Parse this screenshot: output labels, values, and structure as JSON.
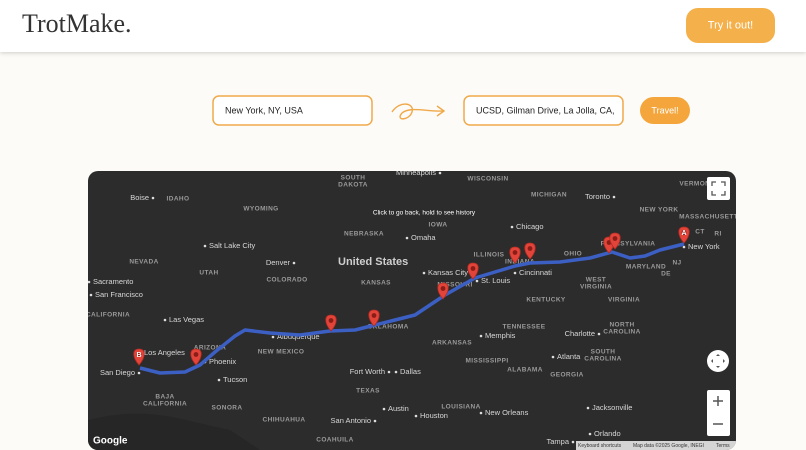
{
  "header": {
    "logo": "TrotMake.",
    "cta": "Try it out!"
  },
  "form": {
    "origin": "New York, NY, USA",
    "destination": "UCSD, Gilman Drive, La Jolla, CA,",
    "submit": "Travel!"
  },
  "map": {
    "hint": "Click to go back, hold to see history",
    "brand": "Google",
    "footer": [
      "Keyboard shortcuts",
      "Map data ©2025 Google, INEGI",
      "Terms"
    ],
    "markers": [
      "A",
      "B"
    ],
    "country": "United States",
    "regions": [
      "SOUTH",
      "DAKOTA",
      "WISCONSIN",
      "MICHIGAN",
      "IDAHO",
      "WYOMING",
      "NEBRASKA",
      "IOWA",
      "NEVADA",
      "UTAH",
      "COLORADO",
      "KANSAS",
      "ILLINOIS",
      "OHIO",
      "CALIFORNIA",
      "ARIZONA",
      "NEW MEXICO",
      "OKLAHOMA",
      "ARKANSAS",
      "TENNESSEE",
      "MISSISSIPPI",
      "ALABAMA",
      "GEORGIA",
      "TEXAS",
      "LOUISIANA",
      "KENTUCKY",
      "WEST",
      "VIRGINIA",
      "VIRGINIA",
      "NORTH",
      "CAROLINA",
      "SOUTH",
      "CAROLINA",
      "MARYLAND",
      "NEW YORK",
      "PENNSYLVANIA",
      "MASSACHUSETTS",
      "VERMONT",
      "BAJA",
      "CALIFORNIA",
      "SONORA",
      "CHIHUAHUA",
      "COAHUILA",
      "CT",
      "RI",
      "NJ",
      "DE",
      "INDIANA",
      "MISSOURI"
    ],
    "cities": [
      "Minneapolis",
      "Toronto",
      "Chicago",
      "Denver",
      "Salt Lake City",
      "Omaha",
      "Kansas City",
      "St. Louis",
      "Cincinnati",
      "New York",
      "Las Vegas",
      "Los Angeles",
      "Phoenix",
      "Tucson",
      "San Diego",
      "San Francisco",
      "Sacramento",
      "Albuquerque",
      "Dallas",
      "Fort Worth",
      "Austin",
      "Houston",
      "San Antonio",
      "Memphis",
      "Atlanta",
      "Charlotte",
      "Jacksonville",
      "Orlando",
      "New Orleans",
      "Boise",
      "Tampa"
    ]
  }
}
